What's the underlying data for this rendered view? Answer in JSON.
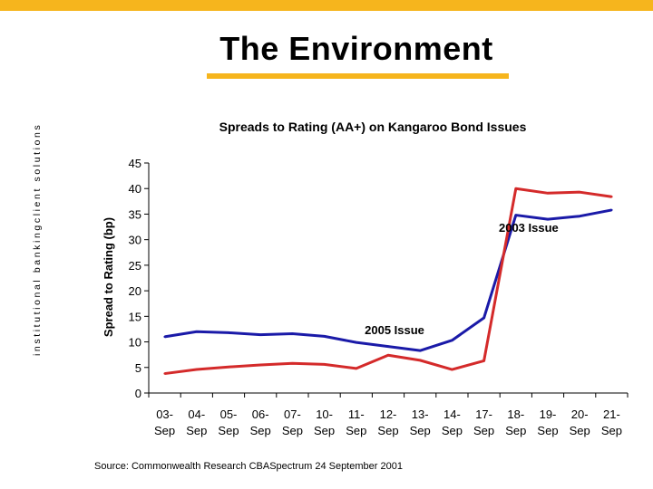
{
  "slide": {
    "title": "The Environment",
    "side_label_left": "institutional banking",
    "side_label_right": "client solutions",
    "source": "Source: Commonwealth Research CBASpectrum 24 September 2001",
    "accent_color": "#f6b51d"
  },
  "chart_data": {
    "type": "line",
    "title": "Spreads to Rating (AA+) on Kangaroo Bond Issues",
    "xlabel": "",
    "ylabel": "Spread to Rating (bp)",
    "ylim": [
      0,
      45
    ],
    "y_ticks": [
      0,
      5,
      10,
      15,
      20,
      25,
      30,
      35,
      40,
      45
    ],
    "grid": false,
    "categories": [
      [
        "03-",
        "Sep"
      ],
      [
        "04-",
        "Sep"
      ],
      [
        "05-",
        "Sep"
      ],
      [
        "06-",
        "Sep"
      ],
      [
        "07-",
        "Sep"
      ],
      [
        "10-",
        "Sep"
      ],
      [
        "11-",
        "Sep"
      ],
      [
        "12-",
        "Sep"
      ],
      [
        "13-",
        "Sep"
      ],
      [
        "14-",
        "Sep"
      ],
      [
        "17-",
        "Sep"
      ],
      [
        "18-",
        "Sep"
      ],
      [
        "19-",
        "Sep"
      ],
      [
        "20-",
        "Sep"
      ],
      [
        "21-",
        "Sep"
      ]
    ],
    "series": [
      {
        "name": "2005 Issue",
        "color": "#1a1aa8",
        "values": [
          11.0,
          12.0,
          11.8,
          11.4,
          11.6,
          11.1,
          9.9,
          9.1,
          8.3,
          10.3,
          14.7,
          34.8,
          34.0,
          34.6,
          35.8
        ],
        "label_at_index": 9,
        "label_offset_index": -1.8
      },
      {
        "name": "2003 Issue",
        "color": "#d42a2a",
        "values": [
          3.8,
          4.6,
          5.1,
          5.5,
          5.8,
          5.6,
          4.8,
          7.4,
          6.4,
          4.6,
          6.3,
          40.0,
          39.1,
          39.3,
          38.4
        ],
        "label_at_index": 12,
        "label_offset_index": -0.6
      }
    ]
  }
}
